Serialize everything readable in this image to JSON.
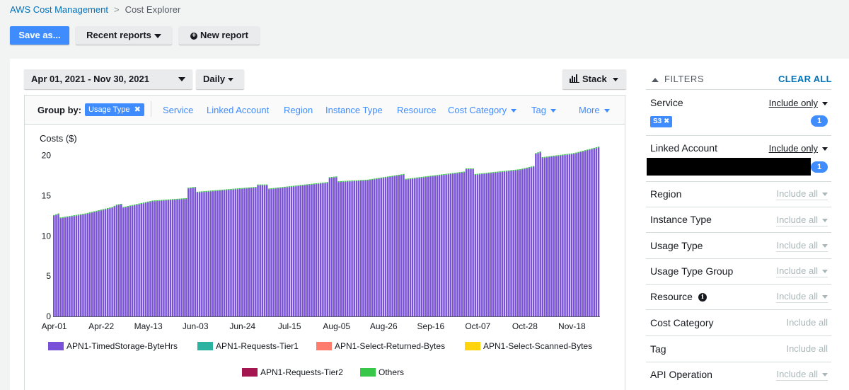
{
  "breadcrumb": {
    "parent": "AWS Cost Management",
    "current": "Cost Explorer"
  },
  "toolbar": {
    "save_as": "Save as...",
    "recent_reports": "Recent reports",
    "new_report": "New report"
  },
  "controls": {
    "date_range": "Apr 01, 2021 - Nov 30, 2021",
    "granularity": "Daily",
    "chart_style": "Stack"
  },
  "group_by": {
    "label": "Group by:",
    "selected": "Usage Type",
    "options": [
      "Service",
      "Linked Account",
      "Region",
      "Instance Type",
      "Resource"
    ],
    "dropdowns": [
      "Cost Category",
      "Tag",
      "More"
    ]
  },
  "filters": {
    "title": "FILTERS",
    "clear_all": "CLEAR ALL",
    "rows": [
      {
        "label": "Service",
        "mode": "Include only",
        "state": "active",
        "chip": "S3",
        "count": "1"
      },
      {
        "label": "Linked Account",
        "mode": "Include only",
        "state": "active",
        "count": "1"
      },
      {
        "label": "Region",
        "mode": "Include all",
        "state": "dim"
      },
      {
        "label": "Instance Type",
        "mode": "Include all",
        "state": "dim"
      },
      {
        "label": "Usage Type",
        "mode": "Include all",
        "state": "dim"
      },
      {
        "label": "Usage Type Group",
        "mode": "Include all",
        "state": "dim"
      },
      {
        "label": "Resource",
        "mode": "Include all",
        "state": "dim"
      },
      {
        "label": "Cost Category",
        "mode": "Include all",
        "state": "plain"
      },
      {
        "label": "Tag",
        "mode": "Include all",
        "state": "plain"
      },
      {
        "label": "API Operation",
        "mode": "Include all",
        "state": "dim"
      }
    ]
  },
  "chart_data": {
    "type": "bar",
    "stacked": true,
    "ylabel": "Costs ($)",
    "ylim": [
      0,
      22
    ],
    "yticks": [
      0,
      5,
      10,
      15,
      20
    ],
    "x_tick_labels": [
      "Apr-01",
      "Apr-22",
      "May-13",
      "Jun-03",
      "Jun-24",
      "Jul-15",
      "Aug-05",
      "Aug-26",
      "Sep-16",
      "Oct-07",
      "Oct-28",
      "Nov-18"
    ],
    "x_tick_index": [
      0,
      21,
      42,
      63,
      84,
      105,
      126,
      147,
      168,
      189,
      210,
      231
    ],
    "days": 244,
    "anchors": [
      [
        0,
        12.5
      ],
      [
        2,
        12.7
      ],
      [
        3,
        12.2
      ],
      [
        14,
        12.7
      ],
      [
        26,
        13.5
      ],
      [
        28,
        13.8
      ],
      [
        30,
        13.9
      ],
      [
        31,
        13.5
      ],
      [
        44,
        14.3
      ],
      [
        59,
        14.6
      ],
      [
        60,
        15.9
      ],
      [
        63,
        16.0
      ],
      [
        64,
        15.4
      ],
      [
        90,
        16.0
      ],
      [
        91,
        16.3
      ],
      [
        95,
        16.3
      ],
      [
        96,
        15.8
      ],
      [
        122,
        16.6
      ],
      [
        123,
        17.2
      ],
      [
        126,
        17.3
      ],
      [
        127,
        16.7
      ],
      [
        140,
        16.9
      ],
      [
        156,
        17.6
      ],
      [
        157,
        17.0
      ],
      [
        183,
        17.9
      ],
      [
        184,
        18.3
      ],
      [
        187,
        18.3
      ],
      [
        188,
        17.6
      ],
      [
        208,
        18.2
      ],
      [
        214,
        18.6
      ],
      [
        215,
        20.2
      ],
      [
        217,
        20.4
      ],
      [
        218,
        19.7
      ],
      [
        232,
        20.2
      ],
      [
        243,
        21.0
      ]
    ],
    "series": [
      {
        "name": "APN1-TimedStorage-ByteHrs",
        "color": "#7950d8"
      },
      {
        "name": "APN1-Requests-Tier1",
        "color": "#2ab3a0"
      },
      {
        "name": "APN1-Select-Returned-Bytes",
        "color": "#ff7b6b"
      },
      {
        "name": "APN1-Select-Scanned-Bytes",
        "color": "#ffd40e"
      },
      {
        "name": "APN1-Requests-Tier2",
        "color": "#a3164f"
      },
      {
        "name": "Others",
        "color": "#38c748"
      }
    ],
    "others_top_value": 0.1
  }
}
